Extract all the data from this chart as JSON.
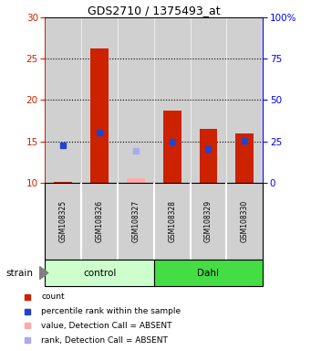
{
  "title": "GDS2710 / 1375493_at",
  "samples": [
    "GSM108325",
    "GSM108326",
    "GSM108327",
    "GSM108328",
    "GSM108329",
    "GSM108330"
  ],
  "red_bars": [
    10.1,
    26.3,
    null,
    18.7,
    16.5,
    16.0
  ],
  "blue_squares": [
    14.5,
    16.1,
    null,
    15.0,
    14.1,
    15.1
  ],
  "pink_bars": [
    null,
    null,
    10.5,
    null,
    null,
    null
  ],
  "lavender_squares": [
    null,
    null,
    13.8,
    null,
    null,
    null
  ],
  "ylim": [
    10,
    30
  ],
  "yticks": [
    10,
    15,
    20,
    25,
    30
  ],
  "y2ticklabels": [
    "0",
    "25",
    "50",
    "75",
    "100%"
  ],
  "dotted_lines": [
    15,
    20,
    25
  ],
  "bar_bottom": 10,
  "bar_width": 0.5,
  "gray_color": "#d0d0d0",
  "red_color": "#cc2200",
  "blue_color": "#2244cc",
  "pink_color": "#ffaaaa",
  "lavender_color": "#aaaaee",
  "control_color": "#ccffcc",
  "dahl_color": "#44dd44",
  "white_color": "#ffffff",
  "legend_items": [
    [
      "#cc2200",
      "count"
    ],
    [
      "#2244cc",
      "percentile rank within the sample"
    ],
    [
      "#ffaaaa",
      "value, Detection Call = ABSENT"
    ],
    [
      "#aaaaee",
      "rank, Detection Call = ABSENT"
    ]
  ]
}
